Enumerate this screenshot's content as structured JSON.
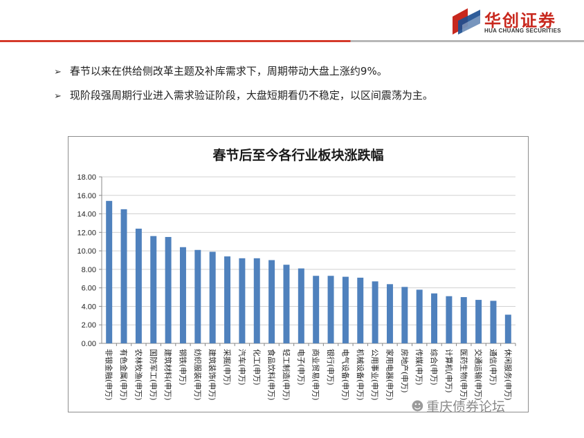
{
  "brand": {
    "name_cn": "华创证券",
    "name_en": "HUA CHUANG SECURITIES",
    "colors": {
      "red": "#c8281e",
      "blue": "#1d4f91",
      "bar": "#4f81bd"
    }
  },
  "bullets": [
    {
      "icon": "arrow-bullet-icon",
      "text": "春节以来在供给侧改革主题及补库需求下，周期带动大盘上涨约9%。"
    },
    {
      "icon": "arrow-bullet-icon",
      "text": "现阶段强周期行业进入需求验证阶段，大盘短期看仍不稳定，以区间震荡为主。"
    }
  ],
  "chart_data": {
    "type": "bar",
    "title": "春节后至今各行业板块涨跌幅",
    "xlabel": "",
    "ylabel": "",
    "ylim": [
      0,
      18
    ],
    "ytick_step": 2,
    "ytick_labels": [
      "0.00",
      "2.00",
      "4.00",
      "6.00",
      "8.00",
      "10.00",
      "12.00",
      "14.00",
      "16.00",
      "18.00"
    ],
    "grid": true,
    "legend": "none",
    "categories": [
      "非银金融(申万)",
      "有色金属(申万)",
      "农林牧渔(申万)",
      "国防军工(申万)",
      "建筑材料(申万)",
      "钢铁(申万)",
      "纺织服装(申万)",
      "建筑装饰(申万)",
      "采掘(申万)",
      "汽车(申万)",
      "化工(申万)",
      "食品饮料(申万)",
      "轻工制造(申万)",
      "电子(申万)",
      "商业贸易(申万)",
      "银行(申万)",
      "电气设备(申万)",
      "机械设备(申万)",
      "公用事业(申万)",
      "家用电器(申万)",
      "房地产(申万)",
      "传媒(申万)",
      "综合(申万)",
      "计算机(申万)",
      "医药生物(申万)",
      "交通运输(申万)",
      "通信(申万)",
      "休闲服务(申万)"
    ],
    "values": [
      15.4,
      14.5,
      12.4,
      11.6,
      11.5,
      10.4,
      10.1,
      9.9,
      9.4,
      9.2,
      9.2,
      9.0,
      8.5,
      8.1,
      7.3,
      7.3,
      7.2,
      7.1,
      6.7,
      6.4,
      6.1,
      5.8,
      5.4,
      5.1,
      5.0,
      4.7,
      4.6,
      3.1
    ]
  },
  "watermark": {
    "icon": "wechat-icon",
    "text": "重庆债券论坛"
  }
}
